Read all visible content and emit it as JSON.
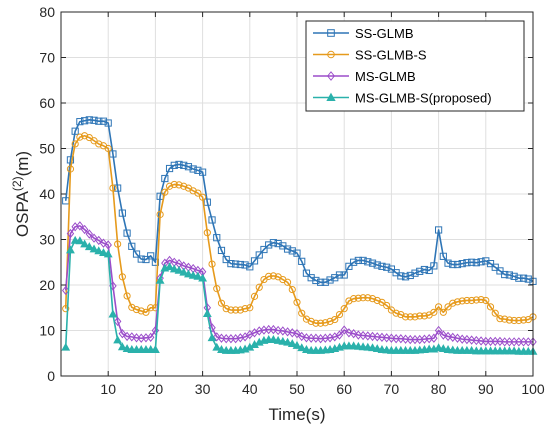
{
  "chart_data": {
    "type": "line",
    "xlabel": "Time(s)",
    "ylabel_main": "OSPA",
    "ylabel_sup": "(2)",
    "ylabel_unit": "(m)",
    "xlim": [
      0,
      100
    ],
    "ylim": [
      0,
      80
    ],
    "xticks": [
      10,
      20,
      30,
      40,
      50,
      60,
      70,
      80,
      90,
      100
    ],
    "xtick_labels": [
      "10",
      "20",
      "30",
      "40",
      "50",
      "60",
      "70",
      "80",
      "90",
      "100"
    ],
    "yticks": [
      0,
      10,
      20,
      30,
      40,
      50,
      60,
      70,
      80
    ],
    "ytick_labels": [
      "0",
      "10",
      "20",
      "30",
      "40",
      "50",
      "60",
      "70",
      "80"
    ],
    "grid": true,
    "legend_position": "top-right",
    "x": [
      1,
      2,
      3,
      4,
      5,
      6,
      7,
      8,
      9,
      10,
      11,
      12,
      13,
      14,
      15,
      16,
      17,
      18,
      19,
      20,
      21,
      22,
      23,
      24,
      25,
      26,
      27,
      28,
      29,
      30,
      31,
      32,
      33,
      34,
      35,
      36,
      37,
      38,
      39,
      40,
      41,
      42,
      43,
      44,
      45,
      46,
      47,
      48,
      49,
      50,
      51,
      52,
      53,
      54,
      55,
      56,
      57,
      58,
      59,
      60,
      61,
      62,
      63,
      64,
      65,
      66,
      67,
      68,
      69,
      70,
      71,
      72,
      73,
      74,
      75,
      76,
      77,
      78,
      79,
      80,
      81,
      82,
      83,
      84,
      85,
      86,
      87,
      88,
      89,
      90,
      91,
      92,
      93,
      94,
      95,
      96,
      97,
      98,
      99,
      100
    ],
    "series": [
      {
        "name": "SS-GLMB",
        "color": "#2e75b6",
        "marker": "square",
        "values": [
          38.5,
          47.5,
          53.8,
          55.9,
          56.1,
          56.3,
          56.2,
          56.0,
          56.0,
          55.6,
          48.8,
          41.3,
          35.8,
          31.4,
          28.5,
          26.8,
          25.7,
          25.6,
          26.4,
          25.0,
          39.5,
          43.4,
          45.6,
          46.3,
          46.5,
          46.3,
          46.0,
          45.5,
          45.2,
          44.8,
          38.2,
          34.3,
          30.4,
          27.6,
          25.6,
          24.7,
          24.6,
          24.5,
          24.4,
          24.0,
          25.3,
          26.6,
          27.8,
          28.8,
          29.3,
          29.1,
          28.6,
          27.9,
          27.5,
          27.0,
          25.2,
          22.6,
          21.6,
          21.0,
          20.6,
          20.6,
          21.1,
          21.6,
          22.2,
          22.2,
          24.1,
          25.0,
          25.4,
          25.4,
          25.1,
          24.8,
          24.4,
          24.1,
          23.9,
          23.5,
          22.7,
          22.0,
          21.8,
          22.1,
          22.6,
          23.0,
          23.4,
          23.2,
          24.2,
          32.1,
          26.3,
          24.8,
          24.5,
          24.5,
          24.7,
          24.9,
          25.0,
          24.9,
          25.1,
          25.3,
          24.7,
          23.9,
          23.1,
          22.3,
          22.2,
          21.9,
          21.5,
          21.5,
          21.3,
          20.8
        ]
      },
      {
        "name": "SS-GLMB-S",
        "color": "#e69a1c",
        "marker": "circle",
        "values": [
          14.8,
          45.5,
          51.0,
          52.5,
          52.8,
          52.4,
          51.7,
          51.0,
          50.6,
          50.0,
          41.3,
          29.0,
          21.8,
          17.6,
          15.1,
          14.6,
          14.3,
          14.0,
          15.0,
          15.0,
          35.5,
          40.4,
          41.7,
          42.1,
          42.0,
          41.7,
          41.3,
          40.7,
          40.2,
          39.3,
          31.5,
          24.6,
          19.2,
          16.0,
          14.8,
          14.5,
          14.5,
          14.5,
          14.8,
          15.0,
          17.5,
          19.5,
          21.2,
          21.9,
          22.0,
          21.8,
          21.2,
          20.6,
          19.0,
          16.2,
          13.8,
          12.5,
          12.0,
          11.6,
          11.6,
          11.7,
          12.0,
          12.4,
          13.5,
          14.8,
          16.5,
          17.0,
          17.1,
          17.2,
          17.2,
          17.0,
          16.6,
          16.2,
          15.5,
          14.5,
          13.8,
          13.5,
          13.0,
          13.0,
          13.0,
          13.2,
          13.2,
          13.4,
          14.0,
          15.2,
          14.0,
          15.2,
          16.0,
          16.3,
          16.5,
          16.6,
          16.6,
          16.7,
          16.8,
          16.6,
          15.2,
          13.8,
          12.6,
          12.5,
          12.3,
          12.2,
          12.2,
          12.3,
          12.4,
          13.0
        ]
      },
      {
        "name": "MS-GLMB",
        "color": "#9b4dca",
        "marker": "diamond",
        "values": [
          18.8,
          31.3,
          32.8,
          33.0,
          32.2,
          31.2,
          30.3,
          29.8,
          29.2,
          28.8,
          19.8,
          12.0,
          9.3,
          8.7,
          8.6,
          8.4,
          8.3,
          8.4,
          8.5,
          10.0,
          21.5,
          24.8,
          25.4,
          25.0,
          24.7,
          24.2,
          23.9,
          23.6,
          23.2,
          22.9,
          15.0,
          10.6,
          8.6,
          8.3,
          8.2,
          8.2,
          8.2,
          8.4,
          8.6,
          9.1,
          9.5,
          9.9,
          10.1,
          10.2,
          10.2,
          10.0,
          9.9,
          9.7,
          9.5,
          9.3,
          8.7,
          8.4,
          8.3,
          8.3,
          8.2,
          8.3,
          8.4,
          8.6,
          9.0,
          10.1,
          9.5,
          9.3,
          9.0,
          8.9,
          8.8,
          8.7,
          8.6,
          8.5,
          8.4,
          8.3,
          8.2,
          8.2,
          8.1,
          8.0,
          8.0,
          8.0,
          8.1,
          8.2,
          8.3,
          10.0,
          9.0,
          8.7,
          8.5,
          8.3,
          8.1,
          8.0,
          7.9,
          7.8,
          7.7,
          7.6,
          7.6,
          7.6,
          7.6,
          7.5,
          7.5,
          7.5,
          7.5,
          7.5,
          7.5,
          7.5
        ]
      },
      {
        "name": "MS-GLMB-S(proposed)",
        "color": "#2ab1ab",
        "marker": "triangle",
        "values": [
          6.3,
          27.7,
          29.8,
          29.7,
          29.0,
          28.4,
          27.9,
          27.5,
          27.1,
          26.8,
          13.6,
          7.9,
          6.4,
          6.0,
          5.8,
          5.8,
          5.8,
          5.8,
          5.8,
          5.8,
          21.0,
          23.7,
          24.0,
          23.5,
          23.2,
          22.8,
          22.4,
          22.1,
          21.9,
          21.5,
          13.7,
          8.4,
          6.3,
          5.8,
          5.6,
          5.6,
          5.6,
          5.7,
          5.9,
          6.3,
          6.9,
          7.4,
          7.8,
          8.0,
          8.0,
          7.8,
          7.6,
          7.4,
          7.1,
          6.7,
          6.2,
          5.8,
          5.6,
          5.6,
          5.6,
          5.7,
          5.8,
          6.0,
          6.3,
          6.6,
          6.6,
          6.6,
          6.5,
          6.4,
          6.3,
          6.2,
          6.0,
          5.8,
          5.7,
          5.6,
          5.6,
          5.6,
          5.6,
          5.6,
          5.6,
          5.7,
          5.8,
          5.9,
          5.9,
          6.2,
          6.0,
          5.8,
          5.7,
          5.6,
          5.6,
          5.6,
          5.6,
          5.5,
          5.5,
          5.5,
          5.5,
          5.5,
          5.5,
          5.5,
          5.5,
          5.5,
          5.4,
          5.4,
          5.4,
          5.4
        ]
      }
    ]
  }
}
